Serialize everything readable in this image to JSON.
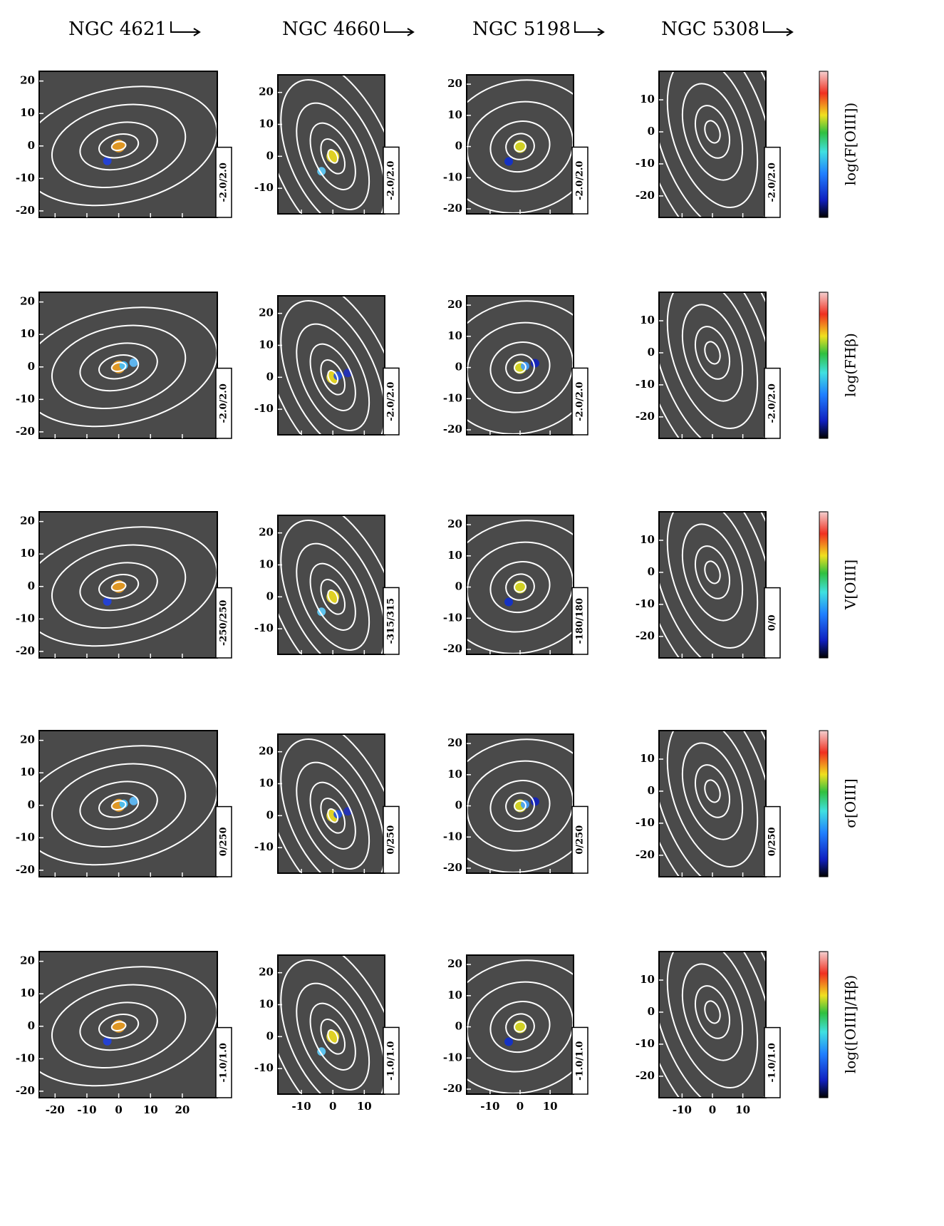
{
  "figure": {
    "columns": [
      {
        "name": "NGC 4621",
        "xlim": [
          -25,
          31
        ],
        "ylim": [
          -22,
          23
        ],
        "xticks": [
          -20,
          -10,
          0,
          10,
          20
        ],
        "yticks": [
          20,
          10,
          0,
          -10,
          -20
        ]
      },
      {
        "name": "NGC 4660",
        "xlim": [
          -17.5,
          16.5
        ],
        "ylim": [
          -18,
          25.5
        ],
        "xticks": [
          -10,
          0,
          10
        ],
        "yticks": [
          20,
          10,
          0,
          -10
        ]
      },
      {
        "name": "NGC 5198",
        "xlim": [
          -17.8,
          17.8
        ],
        "ylim": [
          -21.6,
          23
        ],
        "xticks": [
          -10,
          0,
          10
        ],
        "yticks": [
          20,
          10,
          0,
          -10,
          -20
        ]
      },
      {
        "name": "NGC 5308",
        "xlim": [
          -17.6,
          17.6
        ],
        "ylim": [
          -26.7,
          18.9
        ],
        "xticks": [
          -10,
          0,
          10
        ],
        "yticks": [
          10,
          0,
          -10,
          -20
        ]
      }
    ],
    "rows": [
      {
        "label": "log(F[OIII])",
        "ranges": [
          "-2.0/2.0",
          "-2.0/2.0",
          "-2.0/2.0",
          "-2.0/2.0"
        ]
      },
      {
        "label": "log(FHβ)",
        "ranges": [
          "-2.0/2.0",
          "-2.0/2.0",
          "-2.0/2.0",
          "-2.0/2.0"
        ]
      },
      {
        "label": "V[OIII]",
        "ranges": [
          "-250/250",
          "-315/315",
          "-180/180",
          "0/0"
        ]
      },
      {
        "label": "σ[OIII]",
        "ranges": [
          "0/250",
          "0/250",
          "0/250",
          "0/250"
        ]
      },
      {
        "label": "log([OIII]/Hβ)",
        "ranges": [
          "-1.0/1.0",
          "-1.0/1.0",
          "-1.0/1.0",
          "-1.0/1.0"
        ]
      }
    ]
  }
}
